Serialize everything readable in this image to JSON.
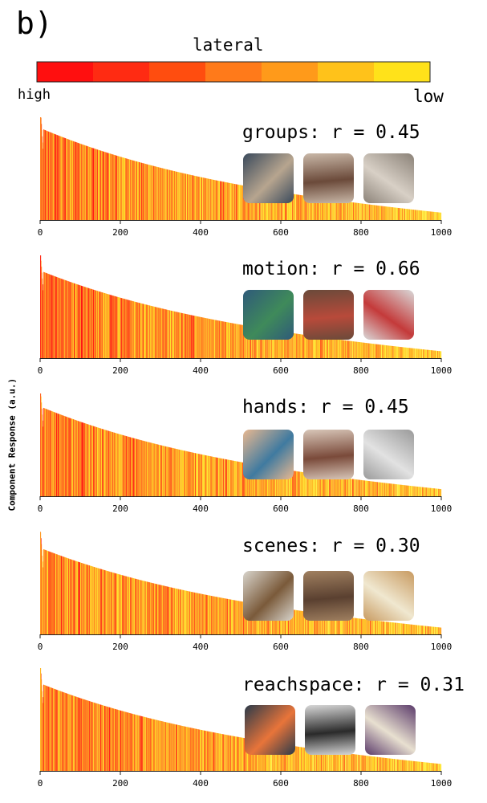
{
  "panel_label": "b)",
  "colorbar": {
    "title": "lateral",
    "high_label": "high",
    "low_label": "low",
    "colors": [
      "#ff0f0f",
      "#ff2b12",
      "#ff4d0f",
      "#ff7a1a",
      "#ff9a1a",
      "#ffc21a",
      "#ffe21a"
    ]
  },
  "y_axis_label": "Component Response (a.u.)",
  "chart_data": [
    {
      "type": "bar",
      "component": "groups",
      "r_label": "groups: r = 0.45",
      "r": 0.45,
      "x_ticks": [
        "0",
        "200",
        "400",
        "600",
        "800",
        "1000"
      ],
      "xlim": [
        0,
        1000
      ],
      "n_items": 1000,
      "peak": 1.0,
      "decay": 0.35,
      "thumbnails": [
        "group-photo-1",
        "group-photo-2",
        "group-photo-3"
      ]
    },
    {
      "type": "bar",
      "component": "motion",
      "r_label": "motion: r = 0.66",
      "r": 0.66,
      "x_ticks": [
        "0",
        "200",
        "400",
        "600",
        "800",
        "1000"
      ],
      "xlim": [
        0,
        1000
      ],
      "n_items": 1000,
      "peak": 1.0,
      "decay": 0.55,
      "thumbnails": [
        "tennis-photo",
        "baseball-photo",
        "skier-photo"
      ]
    },
    {
      "type": "bar",
      "component": "hands",
      "r_label": "hands: r = 0.45",
      "r": 0.45,
      "x_ticks": [
        "0",
        "200",
        "400",
        "600",
        "800",
        "1000"
      ],
      "xlim": [
        0,
        1000
      ],
      "n_items": 1000,
      "peak": 1.0,
      "decay": 0.45,
      "thumbnails": [
        "baby-photo",
        "family-photo",
        "phone-photo"
      ]
    },
    {
      "type": "bar",
      "component": "scenes",
      "r_label": "scenes: r = 0.30",
      "r": 0.3,
      "x_ticks": [
        "0",
        "200",
        "400",
        "600",
        "800",
        "1000"
      ],
      "xlim": [
        0,
        1000
      ],
      "n_items": 1000,
      "peak": 1.0,
      "decay": 0.6,
      "thumbnails": [
        "kitchen-photo-1",
        "kitchen-photo-2",
        "kitchen-photo-3"
      ]
    },
    {
      "type": "bar",
      "component": "reachspace",
      "r_label": "reachspace: r = 0.31",
      "r": 0.31,
      "x_ticks": [
        "0",
        "200",
        "400",
        "600",
        "800",
        "1000"
      ],
      "xlim": [
        0,
        1000
      ],
      "n_items": 1000,
      "peak": 1.0,
      "decay": 0.55,
      "thumbnails": [
        "cutting-board-photo",
        "sink-photo",
        "tools-photo"
      ]
    }
  ]
}
